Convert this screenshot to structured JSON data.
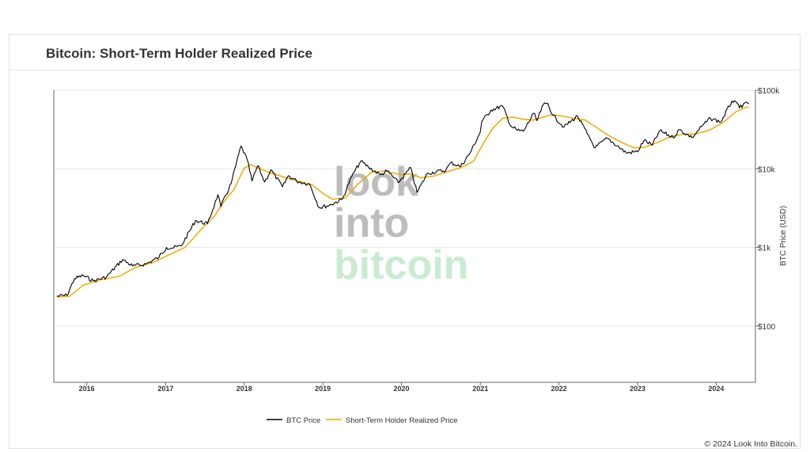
{
  "title": "Bitcoin: Short-Term Holder Realized Price",
  "copyright": "© 2024 Look Into Bitcoin.",
  "watermark": {
    "line1": "look",
    "line2": "into",
    "line3": "bitcoin"
  },
  "colors": {
    "btc": "#000000",
    "sth": "#f2a900",
    "grid": "#e6e6e6",
    "watermark_gray": "#bdbdbd",
    "watermark_green": "#c9ecd0"
  },
  "chart_data": {
    "type": "line",
    "title": "Bitcoin: Short-Term Holder Realized Price",
    "xlabel": "",
    "ylabel": "BTC Price (USD)",
    "y_scale": "log",
    "ylim": [
      20,
      100000
    ],
    "xlim": [
      "2015-08-01",
      "2024-07-01"
    ],
    "grid": true,
    "legend_position": "bottom-center",
    "x_ticks": [
      "2016",
      "2017",
      "2018",
      "2019",
      "2020",
      "2021",
      "2022",
      "2023",
      "2024"
    ],
    "y_ticks": [
      {
        "value": 100,
        "label": "$100"
      },
      {
        "value": 1000,
        "label": "$1k"
      },
      {
        "value": 10000,
        "label": "$10k"
      },
      {
        "value": 100000,
        "label": "$100k"
      }
    ],
    "series": [
      {
        "name": "BTC Price",
        "color": "#000000",
        "points": [
          [
            "2015-08-15",
            240
          ],
          [
            "2015-10-01",
            245
          ],
          [
            "2015-11-05",
            400
          ],
          [
            "2015-12-15",
            440
          ],
          [
            "2016-02-01",
            375
          ],
          [
            "2016-04-01",
            420
          ],
          [
            "2016-06-15",
            700
          ],
          [
            "2016-08-01",
            580
          ],
          [
            "2016-10-01",
            615
          ],
          [
            "2016-12-01",
            750
          ],
          [
            "2017-01-05",
            1000
          ],
          [
            "2017-02-01",
            980
          ],
          [
            "2017-03-15",
            1050
          ],
          [
            "2017-05-20",
            2200
          ],
          [
            "2017-07-15",
            2000
          ],
          [
            "2017-09-01",
            4700
          ],
          [
            "2017-09-15",
            3300
          ],
          [
            "2017-11-01",
            6500
          ],
          [
            "2017-12-17",
            19500
          ],
          [
            "2018-01-15",
            13000
          ],
          [
            "2018-02-06",
            7000
          ],
          [
            "2018-03-05",
            11000
          ],
          [
            "2018-04-06",
            6800
          ],
          [
            "2018-05-05",
            9700
          ],
          [
            "2018-06-28",
            5900
          ],
          [
            "2018-07-25",
            8200
          ],
          [
            "2018-09-01",
            7000
          ],
          [
            "2018-11-01",
            6400
          ],
          [
            "2018-12-15",
            3200
          ],
          [
            "2019-02-01",
            3450
          ],
          [
            "2019-04-01",
            4100
          ],
          [
            "2019-05-15",
            8000
          ],
          [
            "2019-06-26",
            12500
          ],
          [
            "2019-08-01",
            10500
          ],
          [
            "2019-09-25",
            8400
          ],
          [
            "2019-10-27",
            9400
          ],
          [
            "2019-12-17",
            6700
          ],
          [
            "2020-02-13",
            10300
          ],
          [
            "2020-03-13",
            5000
          ],
          [
            "2020-05-01",
            8800
          ],
          [
            "2020-07-25",
            9600
          ],
          [
            "2020-08-17",
            12000
          ],
          [
            "2020-10-01",
            10700
          ],
          [
            "2020-11-15",
            16000
          ],
          [
            "2020-12-31",
            29000
          ],
          [
            "2021-01-08",
            40000
          ],
          [
            "2021-02-20",
            56000
          ],
          [
            "2021-04-14",
            63000
          ],
          [
            "2021-05-23",
            35000
          ],
          [
            "2021-06-22",
            31000
          ],
          [
            "2021-07-20",
            30000
          ],
          [
            "2021-09-06",
            51000
          ],
          [
            "2021-09-21",
            41000
          ],
          [
            "2021-10-20",
            65000
          ],
          [
            "2021-11-10",
            68000
          ],
          [
            "2021-12-04",
            48000
          ],
          [
            "2022-01-24",
            34000
          ],
          [
            "2022-03-28",
            47000
          ],
          [
            "2022-05-12",
            28000
          ],
          [
            "2022-06-18",
            18500
          ],
          [
            "2022-08-13",
            24500
          ],
          [
            "2022-09-30",
            19500
          ],
          [
            "2022-11-09",
            16000
          ],
          [
            "2022-12-31",
            16500
          ],
          [
            "2023-01-31",
            23000
          ],
          [
            "2023-03-10",
            20000
          ],
          [
            "2023-04-14",
            30500
          ],
          [
            "2023-06-15",
            25000
          ],
          [
            "2023-07-13",
            31500
          ],
          [
            "2023-09-11",
            25000
          ],
          [
            "2023-10-25",
            34500
          ],
          [
            "2023-12-05",
            44000
          ],
          [
            "2024-01-23",
            39500
          ],
          [
            "2024-03-14",
            73000
          ],
          [
            "2024-04-30",
            60000
          ],
          [
            "2024-05-20",
            71000
          ],
          [
            "2024-06-01",
            67500
          ]
        ]
      },
      {
        "name": "Short-Term Holder Realized Price",
        "color": "#f2a900",
        "points": [
          [
            "2015-08-15",
            235
          ],
          [
            "2015-10-15",
            240
          ],
          [
            "2015-12-15",
            330
          ],
          [
            "2016-03-01",
            385
          ],
          [
            "2016-06-01",
            430
          ],
          [
            "2016-08-15",
            560
          ],
          [
            "2016-11-01",
            640
          ],
          [
            "2017-01-15",
            800
          ],
          [
            "2017-04-01",
            1000
          ],
          [
            "2017-06-15",
            1700
          ],
          [
            "2017-08-15",
            2500
          ],
          [
            "2017-10-01",
            3900
          ],
          [
            "2017-11-15",
            5500
          ],
          [
            "2018-01-01",
            10200
          ],
          [
            "2018-02-01",
            11300
          ],
          [
            "2018-03-15",
            10000
          ],
          [
            "2018-05-15",
            8700
          ],
          [
            "2018-07-15",
            7700
          ],
          [
            "2018-09-15",
            6900
          ],
          [
            "2018-11-15",
            6200
          ],
          [
            "2018-12-31",
            4900
          ],
          [
            "2019-02-15",
            4100
          ],
          [
            "2019-04-15",
            4300
          ],
          [
            "2019-06-15",
            6500
          ],
          [
            "2019-08-15",
            9000
          ],
          [
            "2019-10-15",
            9400
          ],
          [
            "2019-12-31",
            8400
          ],
          [
            "2020-02-15",
            8600
          ],
          [
            "2020-03-31",
            7700
          ],
          [
            "2020-05-31",
            8100
          ],
          [
            "2020-07-31",
            9200
          ],
          [
            "2020-09-30",
            10300
          ],
          [
            "2020-11-30",
            12500
          ],
          [
            "2021-01-15",
            21000
          ],
          [
            "2021-02-28",
            33000
          ],
          [
            "2021-04-15",
            44000
          ],
          [
            "2021-06-01",
            45500
          ],
          [
            "2021-07-15",
            43000
          ],
          [
            "2021-09-01",
            41500
          ],
          [
            "2021-10-15",
            45000
          ],
          [
            "2021-11-30",
            49000
          ],
          [
            "2022-01-15",
            47000
          ],
          [
            "2022-03-01",
            44500
          ],
          [
            "2022-04-30",
            42000
          ],
          [
            "2022-06-15",
            35000
          ],
          [
            "2022-08-15",
            27000
          ],
          [
            "2022-10-15",
            22000
          ],
          [
            "2022-12-15",
            18500
          ],
          [
            "2023-01-31",
            18700
          ],
          [
            "2023-03-31",
            21500
          ],
          [
            "2023-05-31",
            25500
          ],
          [
            "2023-07-31",
            27500
          ],
          [
            "2023-09-30",
            28000
          ],
          [
            "2023-11-30",
            31000
          ],
          [
            "2024-01-31",
            38500
          ],
          [
            "2024-03-31",
            53000
          ],
          [
            "2024-05-15",
            60000
          ],
          [
            "2024-06-01",
            61500
          ]
        ]
      }
    ]
  }
}
